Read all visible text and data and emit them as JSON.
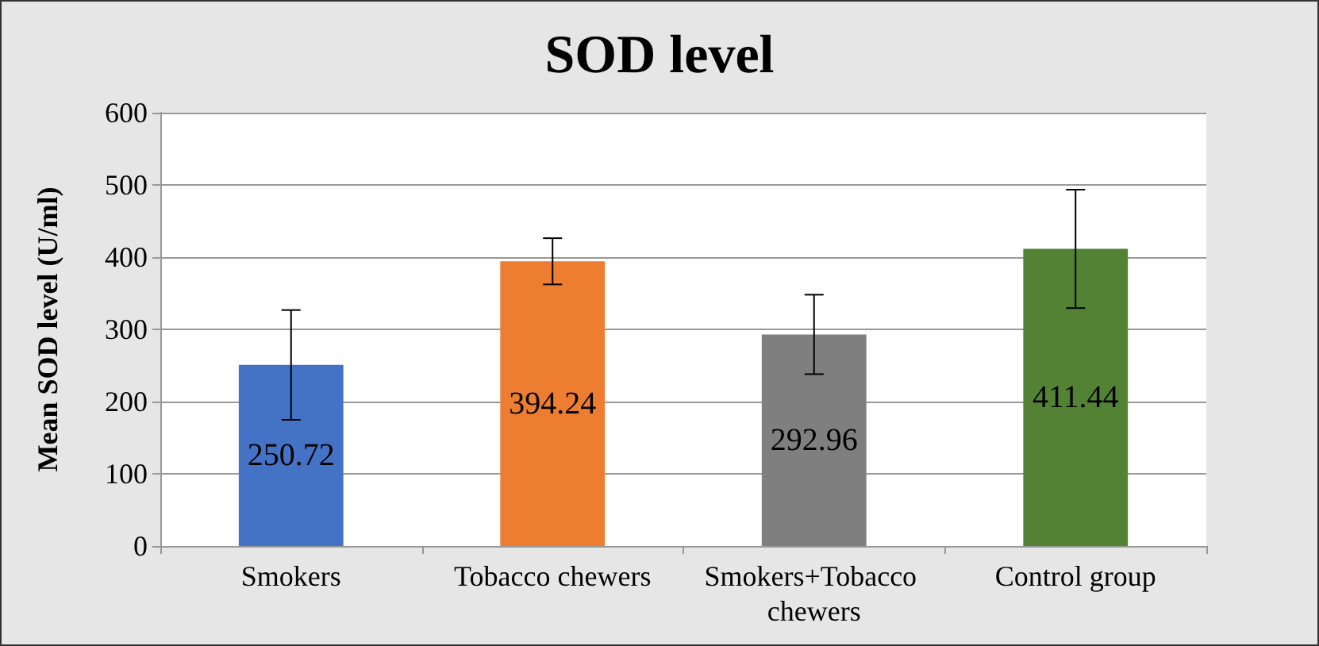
{
  "chart_data": {
    "type": "bar",
    "title": "SOD level",
    "ylabel": "Mean SOD level (U/ml)",
    "categories": [
      "Smokers",
      "Tobacco chewers",
      "Smokers+Tobacco chewers",
      "Control group"
    ],
    "values": [
      250.72,
      394.24,
      292.96,
      411.44
    ],
    "colors": [
      "#4472c4",
      "#ed7d31",
      "#7f7f7f",
      "#548235"
    ],
    "errors": [
      76,
      32,
      55,
      82
    ],
    "ylim": [
      0,
      600
    ],
    "yticks": [
      0,
      100,
      200,
      300,
      400,
      500,
      600
    ],
    "grid": "y",
    "data_labels": true
  }
}
